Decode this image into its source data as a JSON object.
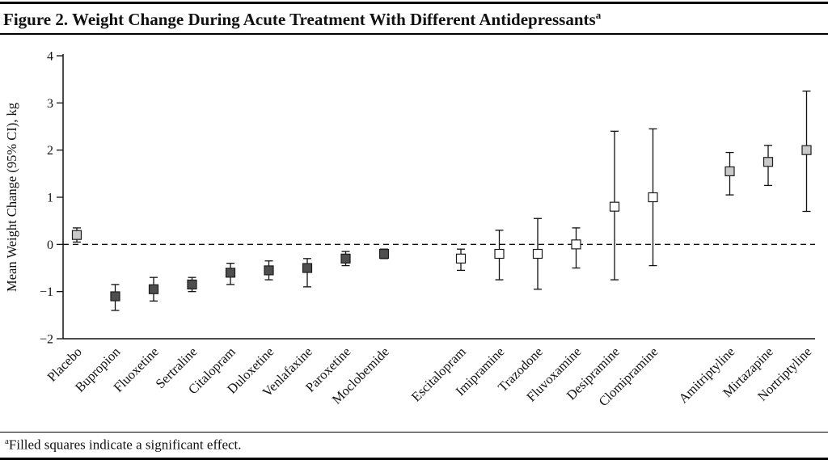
{
  "figure": {
    "title": "Figure 2. Weight Change During Acute Treatment With Different Antidepressants",
    "title_sup": "a",
    "footnote_sup": "a",
    "footnote_text": "Filled squares indicate a significant effect."
  },
  "chart_data": {
    "type": "scatter",
    "title": "Weight Change During Acute Treatment With Different Antidepressants",
    "xlabel": "",
    "ylabel": "Mean Weight Change (95% CI), kg",
    "ylim": [
      -2,
      4
    ],
    "yticks": [
      -2,
      -1,
      0,
      1,
      2,
      3,
      4
    ],
    "grid": false,
    "legend": "none",
    "zero_line": true,
    "marker_colors": {
      "dark": "#4e4e4e",
      "light": "#c9c9c9",
      "open": "#ffffff",
      "stroke": "#1c1c1c"
    },
    "gaps_after": [
      "Moclobemide",
      "Clomipramine"
    ],
    "points": [
      {
        "category": "Placebo",
        "mean": 0.2,
        "ci_low": 0.05,
        "ci_high": 0.35,
        "fill": "light",
        "significant": true
      },
      {
        "category": "Bupropion",
        "mean": -1.1,
        "ci_low": -1.4,
        "ci_high": -0.85,
        "fill": "dark",
        "significant": true
      },
      {
        "category": "Fluoxetine",
        "mean": -0.95,
        "ci_low": -1.2,
        "ci_high": -0.7,
        "fill": "dark",
        "significant": true
      },
      {
        "category": "Sertraline",
        "mean": -0.85,
        "ci_low": -1.0,
        "ci_high": -0.7,
        "fill": "dark",
        "significant": true
      },
      {
        "category": "Citalopram",
        "mean": -0.6,
        "ci_low": -0.85,
        "ci_high": -0.4,
        "fill": "dark",
        "significant": true
      },
      {
        "category": "Duloxetine",
        "mean": -0.55,
        "ci_low": -0.75,
        "ci_high": -0.35,
        "fill": "dark",
        "significant": true
      },
      {
        "category": "Venlafaxine",
        "mean": -0.5,
        "ci_low": -0.9,
        "ci_high": -0.3,
        "fill": "dark",
        "significant": true
      },
      {
        "category": "Paroxetine",
        "mean": -0.3,
        "ci_low": -0.45,
        "ci_high": -0.15,
        "fill": "dark",
        "significant": true
      },
      {
        "category": "Moclobemide",
        "mean": -0.2,
        "ci_low": -0.3,
        "ci_high": -0.1,
        "fill": "dark",
        "significant": true
      },
      {
        "category": "Escitalopram",
        "mean": -0.3,
        "ci_low": -0.55,
        "ci_high": -0.1,
        "fill": "open",
        "significant": false
      },
      {
        "category": "Imipramine",
        "mean": -0.2,
        "ci_low": -0.75,
        "ci_high": 0.3,
        "fill": "open",
        "significant": false
      },
      {
        "category": "Trazodone",
        "mean": -0.2,
        "ci_low": -0.95,
        "ci_high": 0.55,
        "fill": "open",
        "significant": false
      },
      {
        "category": "Fluvoxamine",
        "mean": 0.0,
        "ci_low": -0.5,
        "ci_high": 0.35,
        "fill": "open",
        "significant": false
      },
      {
        "category": "Desipramine",
        "mean": 0.8,
        "ci_low": -0.75,
        "ci_high": 2.4,
        "fill": "open",
        "significant": false
      },
      {
        "category": "Clomipramine",
        "mean": 1.0,
        "ci_low": -0.45,
        "ci_high": 2.45,
        "fill": "open",
        "significant": false
      },
      {
        "category": "Amitriptyline",
        "mean": 1.55,
        "ci_low": 1.05,
        "ci_high": 1.95,
        "fill": "light",
        "significant": true
      },
      {
        "category": "Mirtazapine",
        "mean": 1.75,
        "ci_low": 1.25,
        "ci_high": 2.1,
        "fill": "light",
        "significant": true
      },
      {
        "category": "Nortriptyline",
        "mean": 2.0,
        "ci_low": 0.7,
        "ci_high": 3.25,
        "fill": "light",
        "significant": true
      }
    ]
  }
}
